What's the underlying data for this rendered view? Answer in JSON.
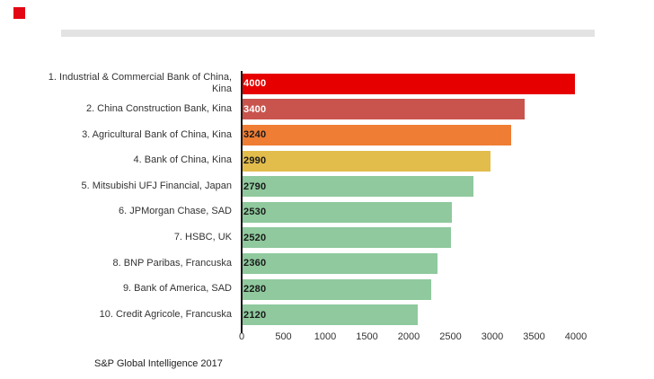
{
  "header": {
    "logo_color": "#e30613",
    "divider_color": "#e3e3e3"
  },
  "chart_data": {
    "type": "bar",
    "orientation": "horizontal",
    "title": "",
    "xlabel": "",
    "ylabel": "",
    "xlim": [
      0,
      4000
    ],
    "xticks": [
      0,
      500,
      1000,
      1500,
      2000,
      2500,
      3000,
      3500,
      4000
    ],
    "grid": false,
    "legend": false,
    "categories": [
      "1. Industrial & Commercial Bank of China,\nKina",
      "2. China Construction Bank, Kina",
      "3. Agricultural Bank of China, Kina",
      "4. Bank of China, Kina",
      "5. Mitsubishi UFJ Financial, Japan",
      "6. JPMorgan Chase, SAD",
      "7. HSBC, UK",
      "8. BNP Paribas, Francuska",
      "9. Bank of America, SAD",
      "10. Credit Agricole, Francuska"
    ],
    "values": [
      4000,
      3400,
      3240,
      2990,
      2790,
      2530,
      2520,
      2360,
      2280,
      2120
    ],
    "bar_colors": [
      "#e60000",
      "#c9544e",
      "#ef7d33",
      "#e3bd4c",
      "#8fc99d",
      "#8fc99d",
      "#8fc99d",
      "#8fc99d",
      "#8fc99d",
      "#8fc99d"
    ],
    "value_label_colors": [
      "#ffffff",
      "#ffffff",
      "#1a1a1a",
      "#1a1a1a",
      "#1a1a1a",
      "#1a1a1a",
      "#1a1a1a",
      "#1a1a1a",
      "#1a1a1a",
      "#1a1a1a"
    ],
    "source": "S&P Global Intelligence 2017"
  }
}
